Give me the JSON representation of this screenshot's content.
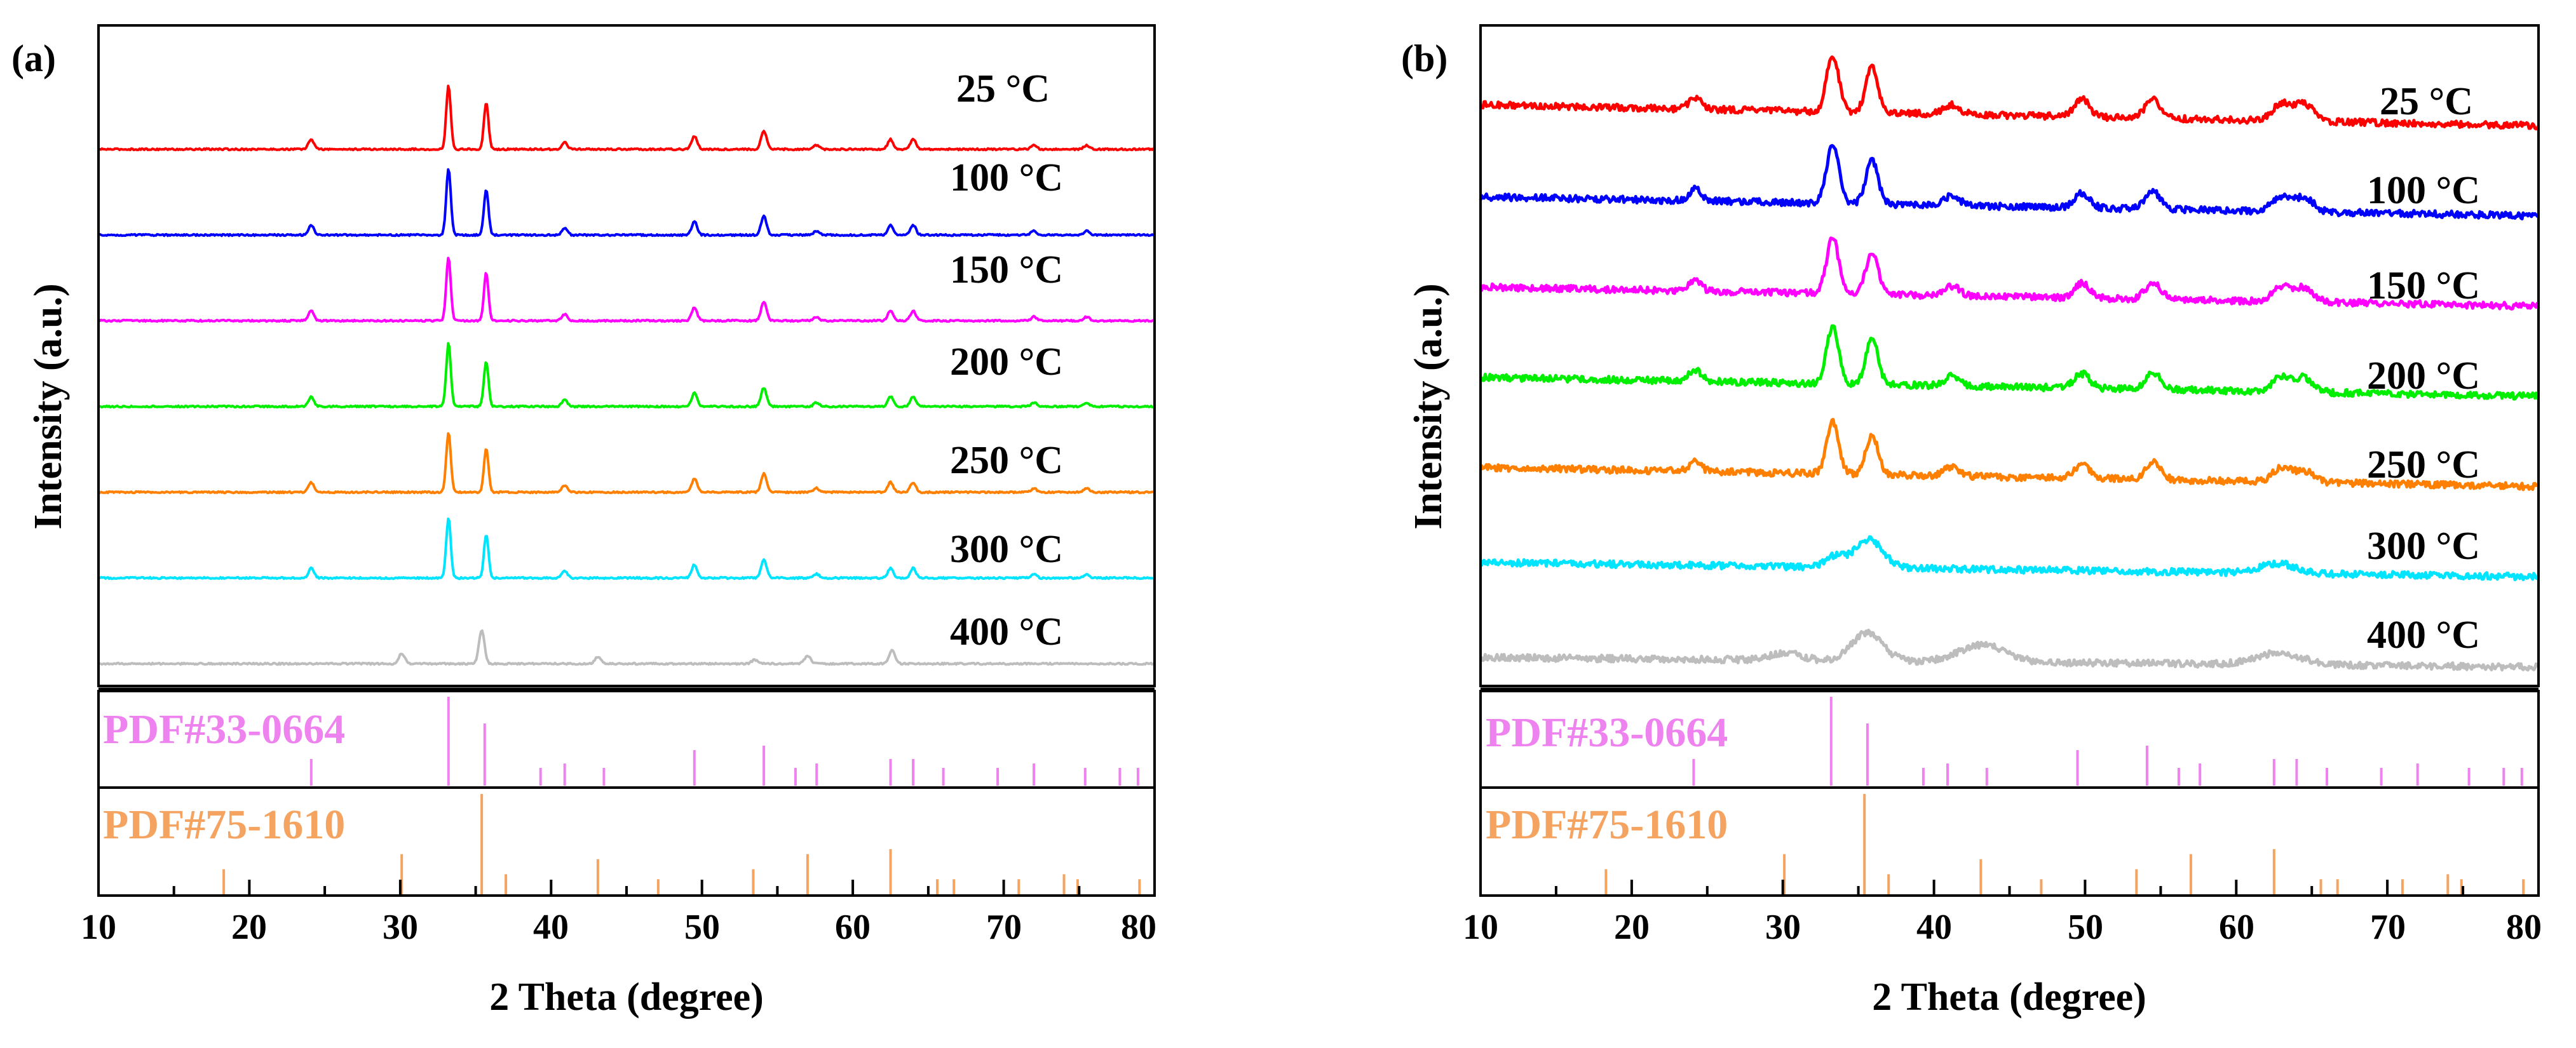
{
  "figure": {
    "panels": [
      {
        "id": "a",
        "panel_label": "(a)",
        "xlabel": "2 Theta (degree)",
        "ylabel": "Intensity (a.u.)",
        "x_ticks": [
          "10",
          "20",
          "30",
          "40",
          "50",
          "60",
          "70",
          "80"
        ],
        "temperature_labels": [
          "25 °C",
          "100 °C",
          "150 °C",
          "200 °C",
          "250 °C",
          "300 °C",
          "400 °C"
        ],
        "reference_labels": [
          "PDF#33-0664",
          "PDF#75-1610"
        ]
      },
      {
        "id": "b",
        "panel_label": "(b)",
        "xlabel": "2 Theta (degree)",
        "ylabel": "Intensity (a.u.)",
        "x_ticks": [
          "10",
          "20",
          "30",
          "40",
          "50",
          "60",
          "70",
          "80"
        ],
        "temperature_labels": [
          "25 °C",
          "100 °C",
          "150 °C",
          "200 °C",
          "250 °C",
          "300 °C",
          "400 °C"
        ],
        "reference_labels": [
          "PDF#33-0664",
          "PDF#75-1610"
        ]
      }
    ]
  },
  "chart_data": [
    {
      "type": "line",
      "panel": "a",
      "title": "",
      "xlabel": "2 Theta (degree)",
      "ylabel": "Intensity (a.u.)",
      "xlim": [
        10,
        80
      ],
      "x_ticks": [
        10,
        20,
        30,
        40,
        50,
        60,
        70,
        80
      ],
      "noise": 0.012,
      "series": [
        {
          "name": "25 °C",
          "color": "#ff0000",
          "offset": 6,
          "baseline_tilt": 0.0,
          "peaks": [
            [
              24.1,
              0.15,
              0.18
            ],
            [
              33.2,
              0.95,
              0.15
            ],
            [
              35.7,
              0.7,
              0.15
            ],
            [
              40.9,
              0.1,
              0.18
            ],
            [
              49.5,
              0.2,
              0.18
            ],
            [
              54.1,
              0.28,
              0.18
            ],
            [
              57.6,
              0.06,
              0.18
            ],
            [
              62.5,
              0.15,
              0.18
            ],
            [
              64.0,
              0.15,
              0.18
            ],
            [
              72.0,
              0.06,
              0.18
            ],
            [
              75.5,
              0.06,
              0.18
            ]
          ]
        },
        {
          "name": "100 °C",
          "color": "#0000ff",
          "offset": 5,
          "baseline_tilt": 0.0,
          "peaks": [
            [
              24.1,
              0.15,
              0.18
            ],
            [
              33.2,
              1.0,
              0.15
            ],
            [
              35.7,
              0.68,
              0.15
            ],
            [
              40.9,
              0.1,
              0.18
            ],
            [
              49.5,
              0.2,
              0.18
            ],
            [
              54.1,
              0.28,
              0.18
            ],
            [
              57.6,
              0.06,
              0.18
            ],
            [
              62.5,
              0.15,
              0.18
            ],
            [
              64.0,
              0.15,
              0.18
            ],
            [
              72.0,
              0.06,
              0.18
            ],
            [
              75.5,
              0.06,
              0.18
            ]
          ]
        },
        {
          "name": "150 °C",
          "color": "#ff00ff",
          "offset": 4,
          "baseline_tilt": 0.0,
          "peaks": [
            [
              24.1,
              0.15,
              0.18
            ],
            [
              33.2,
              0.95,
              0.15
            ],
            [
              35.7,
              0.72,
              0.15
            ],
            [
              40.9,
              0.1,
              0.18
            ],
            [
              49.5,
              0.2,
              0.18
            ],
            [
              54.1,
              0.28,
              0.18
            ],
            [
              57.6,
              0.06,
              0.18
            ],
            [
              62.5,
              0.15,
              0.18
            ],
            [
              64.0,
              0.15,
              0.18
            ],
            [
              72.0,
              0.06,
              0.18
            ],
            [
              75.5,
              0.06,
              0.18
            ]
          ]
        },
        {
          "name": "200 °C",
          "color": "#00ee00",
          "offset": 3,
          "baseline_tilt": 0.0,
          "peaks": [
            [
              24.1,
              0.15,
              0.18
            ],
            [
              33.2,
              0.95,
              0.15
            ],
            [
              35.7,
              0.68,
              0.15
            ],
            [
              40.9,
              0.1,
              0.18
            ],
            [
              49.5,
              0.2,
              0.18
            ],
            [
              54.1,
              0.28,
              0.18
            ],
            [
              57.6,
              0.06,
              0.18
            ],
            [
              62.5,
              0.15,
              0.18
            ],
            [
              64.0,
              0.15,
              0.18
            ],
            [
              72.0,
              0.06,
              0.18
            ],
            [
              75.5,
              0.06,
              0.18
            ]
          ]
        },
        {
          "name": "250 °C",
          "color": "#ff8000",
          "offset": 2,
          "baseline_tilt": 0.0,
          "peaks": [
            [
              24.1,
              0.15,
              0.18
            ],
            [
              33.2,
              0.9,
              0.15
            ],
            [
              35.7,
              0.65,
              0.15
            ],
            [
              40.9,
              0.1,
              0.18
            ],
            [
              49.5,
              0.2,
              0.18
            ],
            [
              54.1,
              0.28,
              0.18
            ],
            [
              57.6,
              0.06,
              0.18
            ],
            [
              62.5,
              0.15,
              0.18
            ],
            [
              64.0,
              0.15,
              0.18
            ],
            [
              72.0,
              0.06,
              0.18
            ],
            [
              75.5,
              0.06,
              0.18
            ]
          ]
        },
        {
          "name": "300 °C",
          "color": "#00e5ff",
          "offset": 1,
          "baseline_tilt": 0.0,
          "peaks": [
            [
              24.1,
              0.15,
              0.18
            ],
            [
              33.2,
              0.9,
              0.15
            ],
            [
              35.7,
              0.65,
              0.15
            ],
            [
              40.9,
              0.1,
              0.18
            ],
            [
              49.5,
              0.2,
              0.18
            ],
            [
              54.1,
              0.28,
              0.18
            ],
            [
              57.6,
              0.06,
              0.18
            ],
            [
              62.5,
              0.15,
              0.18
            ],
            [
              64.0,
              0.15,
              0.18
            ],
            [
              72.0,
              0.06,
              0.18
            ],
            [
              75.5,
              0.06,
              0.18
            ]
          ]
        },
        {
          "name": "400 °C",
          "color": "#bdbdbd",
          "offset": 0,
          "baseline_tilt": 0.0,
          "peaks": [
            [
              30.1,
              0.15,
              0.2
            ],
            [
              35.4,
              0.5,
              0.18
            ],
            [
              43.1,
              0.1,
              0.2
            ],
            [
              53.5,
              0.06,
              0.2
            ],
            [
              57.0,
              0.12,
              0.2
            ],
            [
              62.6,
              0.2,
              0.2
            ]
          ]
        }
      ],
      "reference_patterns": [
        {
          "name": "PDF#33-0664",
          "color": "#ee82ee",
          "lines": [
            [
              24.1,
              0.3
            ],
            [
              33.2,
              1.0
            ],
            [
              35.6,
              0.7
            ],
            [
              39.3,
              0.2
            ],
            [
              40.9,
              0.25
            ],
            [
              43.5,
              0.2
            ],
            [
              49.5,
              0.4
            ],
            [
              54.1,
              0.45
            ],
            [
              56.2,
              0.2
            ],
            [
              57.6,
              0.25
            ],
            [
              62.5,
              0.3
            ],
            [
              64.0,
              0.3
            ],
            [
              66.0,
              0.2
            ],
            [
              69.6,
              0.2
            ],
            [
              72.0,
              0.25
            ],
            [
              75.4,
              0.2
            ],
            [
              77.7,
              0.2
            ],
            [
              78.9,
              0.2
            ]
          ]
        },
        {
          "name": "PDF#75-1610",
          "color": "#f4a460",
          "lines": [
            [
              18.3,
              0.25
            ],
            [
              30.1,
              0.4
            ],
            [
              35.4,
              1.0
            ],
            [
              37.0,
              0.2
            ],
            [
              43.1,
              0.35
            ],
            [
              47.1,
              0.15
            ],
            [
              53.4,
              0.25
            ],
            [
              57.0,
              0.4
            ],
            [
              62.5,
              0.45
            ],
            [
              65.6,
              0.15
            ],
            [
              66.7,
              0.15
            ],
            [
              71.0,
              0.15
            ],
            [
              74.0,
              0.2
            ],
            [
              74.9,
              0.15
            ],
            [
              79.0,
              0.15
            ]
          ]
        }
      ]
    },
    {
      "type": "line",
      "panel": "b",
      "title": "",
      "xlabel": "2 Theta (degree)",
      "ylabel": "Intensity (a.u.)",
      "xlim": [
        10,
        80
      ],
      "x_ticks": [
        10,
        20,
        30,
        40,
        50,
        60,
        70,
        80
      ],
      "noise": 0.035,
      "series": [
        {
          "name": "25 °C",
          "color": "#ff0000",
          "offset": 6,
          "baseline_tilt": 0.22,
          "peaks": [
            [
              24.2,
              0.12,
              0.4
            ],
            [
              33.3,
              0.6,
              0.4
            ],
            [
              35.9,
              0.48,
              0.4
            ],
            [
              41.2,
              0.1,
              0.5
            ],
            [
              49.8,
              0.18,
              0.5
            ],
            [
              54.5,
              0.2,
              0.5
            ],
            [
              63.0,
              0.18,
              0.6
            ],
            [
              64.5,
              0.18,
              0.6
            ]
          ]
        },
        {
          "name": "100 °C",
          "color": "#0000ff",
          "offset": 5,
          "baseline_tilt": 0.2,
          "peaks": [
            [
              24.2,
              0.12,
              0.4
            ],
            [
              33.3,
              0.62,
              0.4
            ],
            [
              35.9,
              0.45,
              0.4
            ],
            [
              41.2,
              0.1,
              0.5
            ],
            [
              49.8,
              0.15,
              0.5
            ],
            [
              54.5,
              0.18,
              0.5
            ],
            [
              63.0,
              0.15,
              0.6
            ],
            [
              64.5,
              0.15,
              0.6
            ]
          ]
        },
        {
          "name": "150 °C",
          "color": "#ff00ff",
          "offset": 4,
          "baseline_tilt": 0.2,
          "peaks": [
            [
              24.2,
              0.12,
              0.4
            ],
            [
              33.3,
              0.58,
              0.4
            ],
            [
              35.9,
              0.45,
              0.4
            ],
            [
              41.2,
              0.1,
              0.5
            ],
            [
              49.8,
              0.15,
              0.5
            ],
            [
              54.5,
              0.18,
              0.5
            ],
            [
              63.0,
              0.15,
              0.6
            ],
            [
              64.5,
              0.15,
              0.6
            ]
          ]
        },
        {
          "name": "200 °C",
          "color": "#00ee00",
          "offset": 3,
          "baseline_tilt": 0.2,
          "peaks": [
            [
              24.2,
              0.12,
              0.4
            ],
            [
              33.3,
              0.6,
              0.4
            ],
            [
              35.9,
              0.5,
              0.4
            ],
            [
              41.2,
              0.1,
              0.5
            ],
            [
              49.8,
              0.15,
              0.5
            ],
            [
              54.5,
              0.18,
              0.5
            ],
            [
              63.0,
              0.15,
              0.6
            ],
            [
              64.5,
              0.15,
              0.6
            ]
          ]
        },
        {
          "name": "250 °C",
          "color": "#ff8000",
          "offset": 2,
          "baseline_tilt": 0.2,
          "peaks": [
            [
              24.2,
              0.1,
              0.4
            ],
            [
              33.3,
              0.55,
              0.4
            ],
            [
              35.9,
              0.42,
              0.4
            ],
            [
              41.2,
              0.1,
              0.5
            ],
            [
              49.8,
              0.15,
              0.5
            ],
            [
              54.5,
              0.18,
              0.5
            ],
            [
              63.0,
              0.15,
              0.6
            ],
            [
              64.5,
              0.12,
              0.6
            ]
          ]
        },
        {
          "name": "300 °C",
          "color": "#00e5ff",
          "offset": 1,
          "baseline_tilt": 0.15,
          "peaks": [
            [
              33.5,
              0.12,
              0.6
            ],
            [
              35.7,
              0.3,
              0.9
            ],
            [
              62.8,
              0.1,
              1.2
            ]
          ]
        },
        {
          "name": "400 °C",
          "color": "#bdbdbd",
          "offset": 0,
          "baseline_tilt": 0.1,
          "peaks": [
            [
              30.2,
              0.08,
              1.0
            ],
            [
              35.6,
              0.3,
              1.0
            ],
            [
              43.2,
              0.18,
              1.5
            ],
            [
              62.8,
              0.12,
              1.5
            ]
          ]
        }
      ],
      "reference_patterns": [
        {
          "name": "PDF#33-0664",
          "color": "#ee82ee",
          "lines": [
            [
              24.1,
              0.3
            ],
            [
              33.2,
              1.0
            ],
            [
              35.6,
              0.7
            ],
            [
              39.3,
              0.2
            ],
            [
              40.9,
              0.25
            ],
            [
              43.5,
              0.2
            ],
            [
              49.5,
              0.4
            ],
            [
              54.1,
              0.45
            ],
            [
              56.2,
              0.2
            ],
            [
              57.6,
              0.25
            ],
            [
              62.5,
              0.3
            ],
            [
              64.0,
              0.3
            ],
            [
              66.0,
              0.2
            ],
            [
              69.6,
              0.2
            ],
            [
              72.0,
              0.25
            ],
            [
              75.4,
              0.2
            ],
            [
              77.7,
              0.2
            ],
            [
              78.9,
              0.2
            ]
          ]
        },
        {
          "name": "PDF#75-1610",
          "color": "#f4a460",
          "lines": [
            [
              18.3,
              0.25
            ],
            [
              30.1,
              0.4
            ],
            [
              35.4,
              1.0
            ],
            [
              37.0,
              0.2
            ],
            [
              43.1,
              0.35
            ],
            [
              47.1,
              0.15
            ],
            [
              53.4,
              0.25
            ],
            [
              57.0,
              0.4
            ],
            [
              62.5,
              0.45
            ],
            [
              65.6,
              0.15
            ],
            [
              66.7,
              0.15
            ],
            [
              71.0,
              0.15
            ],
            [
              74.0,
              0.2
            ],
            [
              74.9,
              0.15
            ],
            [
              79.0,
              0.15
            ]
          ]
        }
      ]
    }
  ]
}
